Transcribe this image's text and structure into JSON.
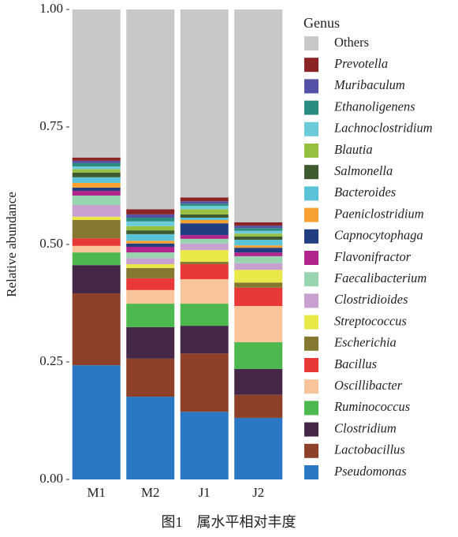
{
  "chart_data": {
    "type": "stacked-bar",
    "y_label": "Relative abundance",
    "legend_title": "Genus",
    "caption": "图1　属水平相对丰度",
    "categories": [
      "M1",
      "M2",
      "J1",
      "J2"
    ],
    "ylim": [
      0,
      1
    ],
    "yticks": [
      {
        "value": 0,
        "label": "0.00"
      },
      {
        "value": 0.25,
        "label": "0.25"
      },
      {
        "value": 0.5,
        "label": "0.50"
      },
      {
        "value": 0.75,
        "label": "0.75"
      },
      {
        "value": 1,
        "label": "1.00"
      }
    ],
    "legend_position": "right",
    "series": [
      {
        "name": "Pseudomonas",
        "color": "#2a78c4",
        "values": [
          0.243,
          0.176,
          0.144,
          0.131
        ]
      },
      {
        "name": "Lactobacillus",
        "color": "#8e4028",
        "values": [
          0.153,
          0.081,
          0.124,
          0.049
        ]
      },
      {
        "name": "Clostridium",
        "color": "#452848",
        "values": [
          0.06,
          0.067,
          0.059,
          0.055
        ]
      },
      {
        "name": "Ruminococcus",
        "color": "#4db84d",
        "values": [
          0.027,
          0.05,
          0.047,
          0.057
        ]
      },
      {
        "name": "Oscillibacter",
        "color": "#f8c49c",
        "values": [
          0.014,
          0.029,
          0.052,
          0.077
        ]
      },
      {
        "name": "Bacillus",
        "color": "#e83838",
        "values": [
          0.016,
          0.025,
          0.032,
          0.039
        ]
      },
      {
        "name": "Escherichia",
        "color": "#857830",
        "values": [
          0.039,
          0.022,
          0.005,
          0.011
        ]
      },
      {
        "name": "Streptococcus",
        "color": "#e8e848",
        "values": [
          0.007,
          0.008,
          0.025,
          0.027
        ]
      },
      {
        "name": "Clostridioides",
        "color": "#c8a0d0",
        "values": [
          0.025,
          0.013,
          0.014,
          0.014
        ]
      },
      {
        "name": "Faecalibacterium",
        "color": "#98d4b0",
        "values": [
          0.02,
          0.012,
          0.01,
          0.015
        ]
      },
      {
        "name": "Flavonifractor",
        "color": "#b0268c",
        "values": [
          0.01,
          0.012,
          0.008,
          0.008
        ]
      },
      {
        "name": "Capnocytophaga",
        "color": "#203e80",
        "values": [
          0.007,
          0.007,
          0.025,
          0.01
        ]
      },
      {
        "name": "Paeniclostridium",
        "color": "#f5a030",
        "values": [
          0.01,
          0.006,
          0.007,
          0.005
        ]
      },
      {
        "name": "Bacteroides",
        "color": "#5ac3d8",
        "values": [
          0.012,
          0.014,
          0.005,
          0.012
        ]
      },
      {
        "name": "Salmonella",
        "color": "#3f5a2e",
        "values": [
          0.01,
          0.008,
          0.007,
          0.007
        ]
      },
      {
        "name": "Blautia",
        "color": "#98c040",
        "values": [
          0.007,
          0.009,
          0.011,
          0.006
        ]
      },
      {
        "name": "Lachnoclostridium",
        "color": "#6ccbd8",
        "values": [
          0.006,
          0.01,
          0.007,
          0.006
        ]
      },
      {
        "name": "Ethanoligenens",
        "color": "#2a8c80",
        "values": [
          0.007,
          0.008,
          0.005,
          0.006
        ]
      },
      {
        "name": "Muribaculum",
        "color": "#5452a6",
        "values": [
          0.005,
          0.007,
          0.005,
          0.005
        ]
      },
      {
        "name": "Prevotella",
        "color": "#8b2525",
        "values": [
          0.007,
          0.011,
          0.008,
          0.007
        ]
      },
      {
        "name": "Others",
        "color": "#c8c8c8",
        "values": [
          0.315,
          0.425,
          0.4,
          0.453
        ]
      }
    ]
  }
}
